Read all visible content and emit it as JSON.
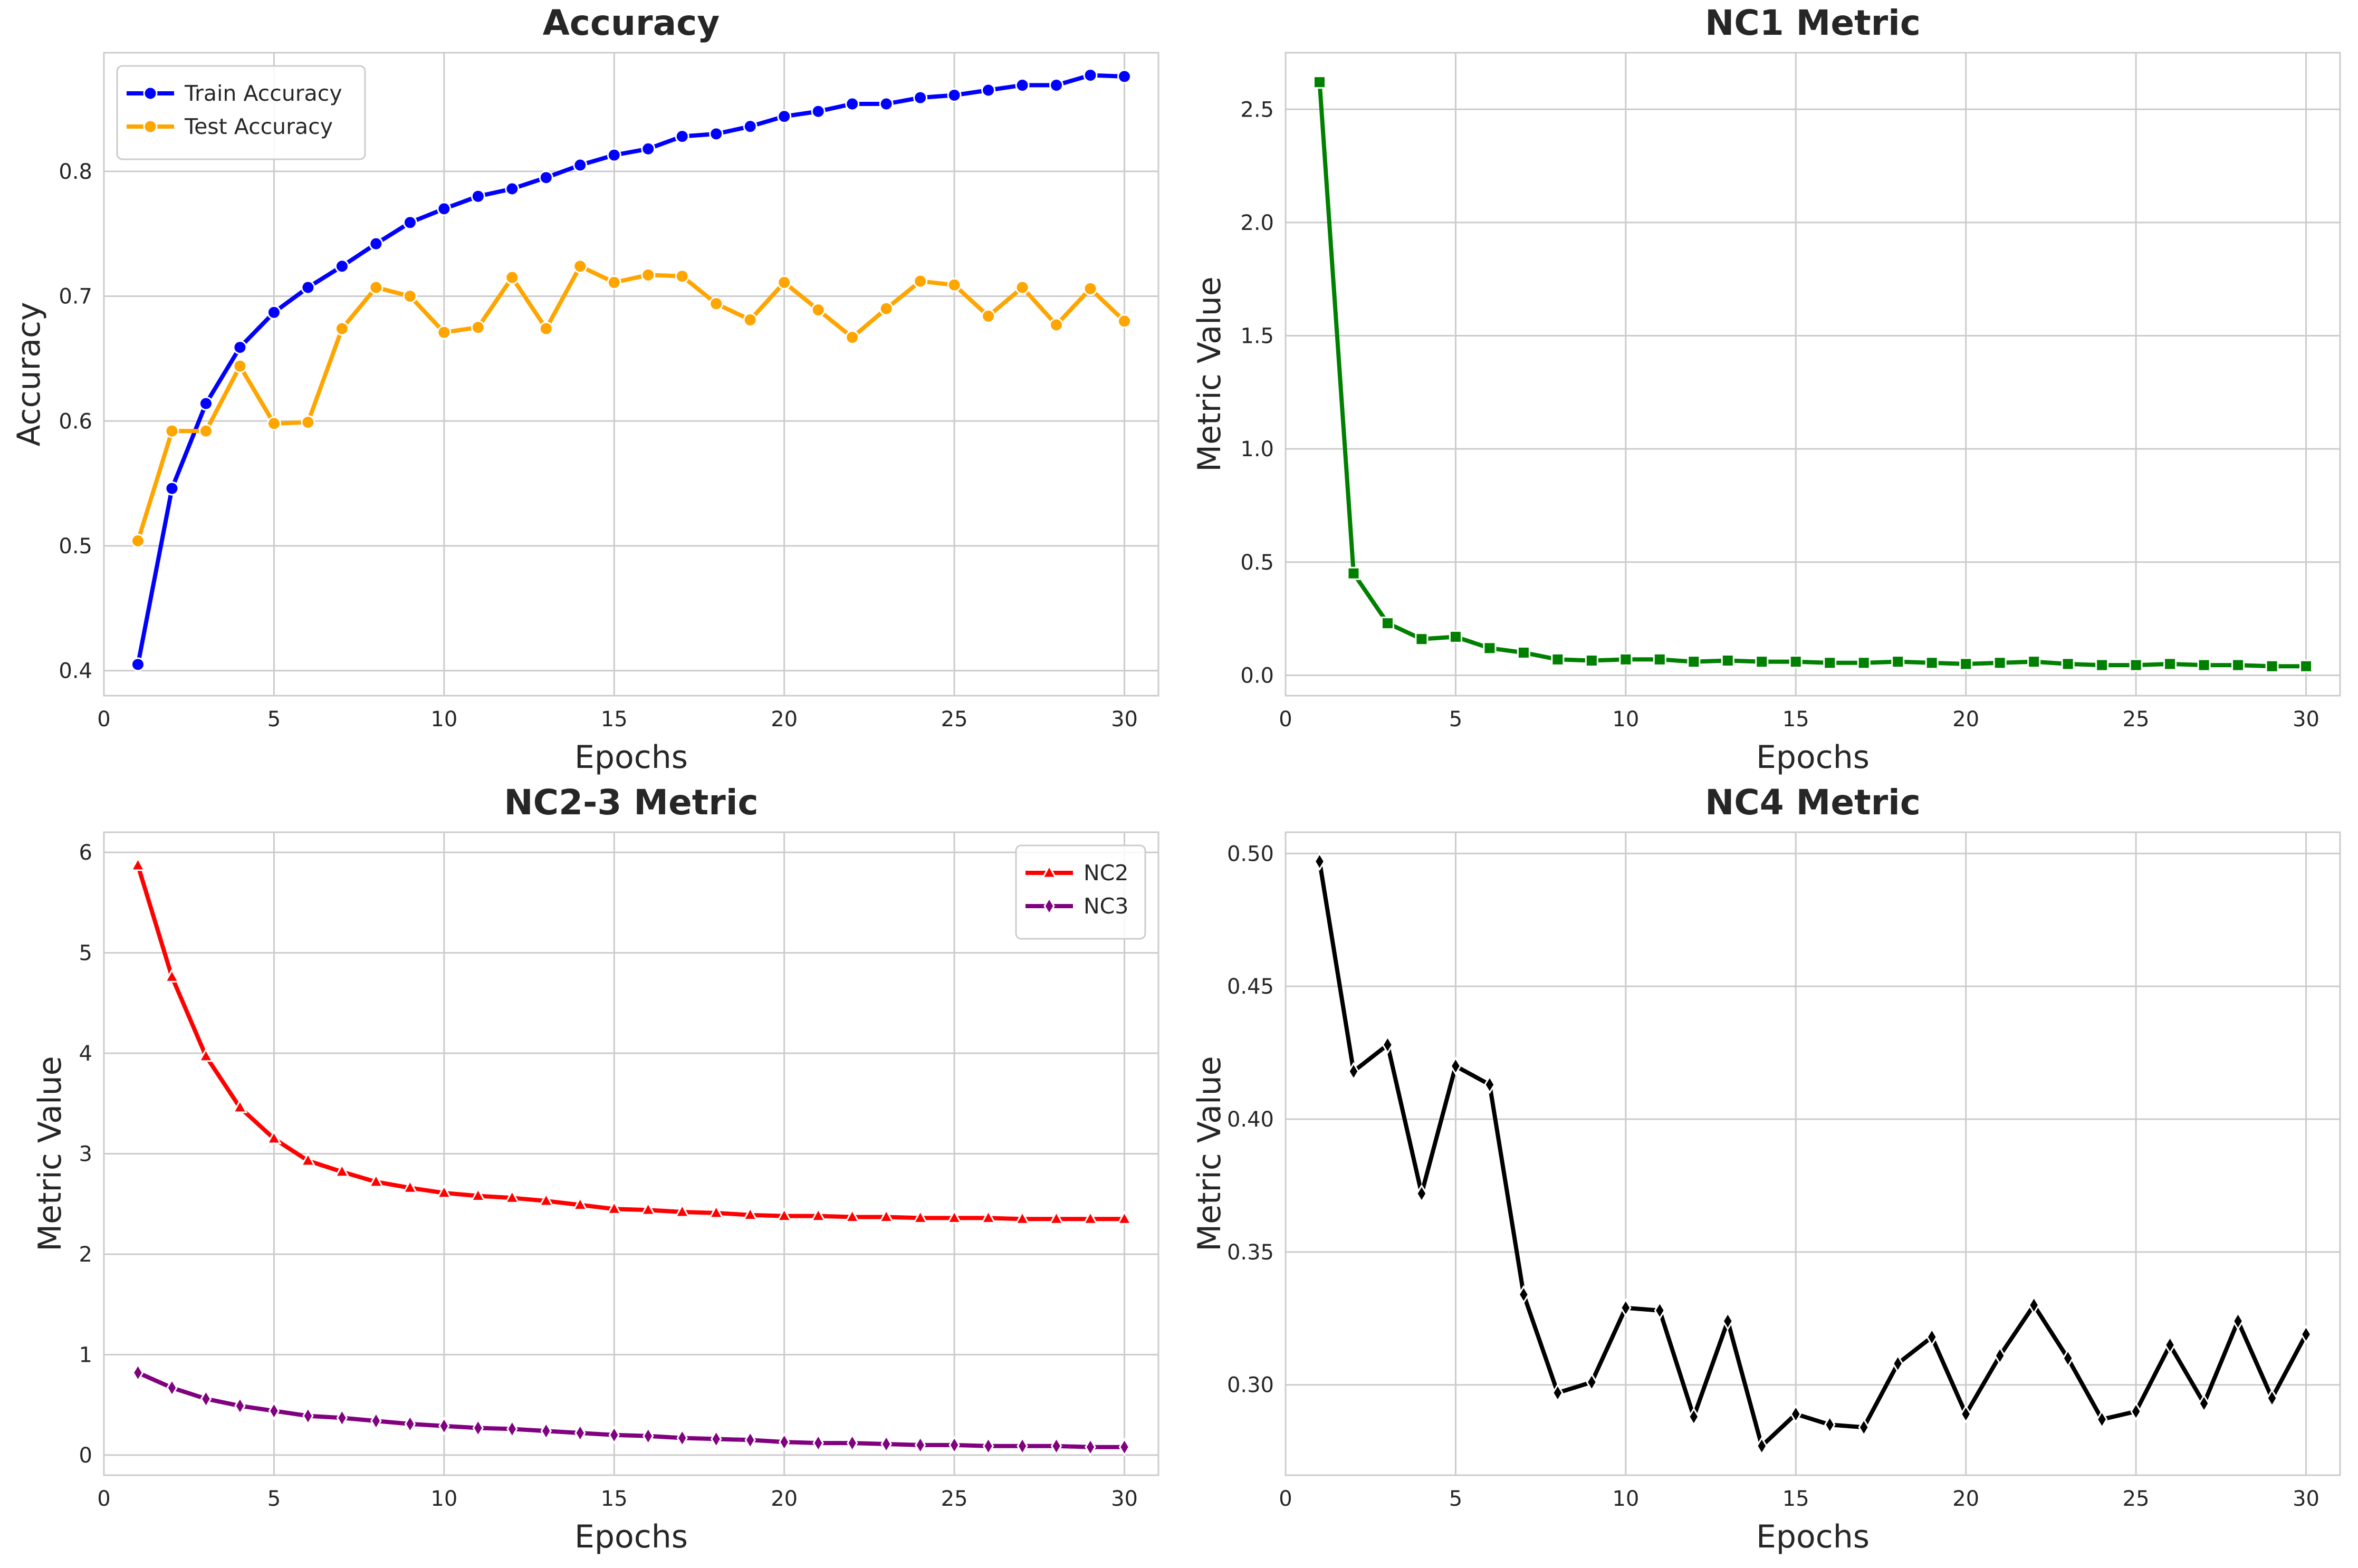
{
  "chart_data": [
    {
      "type": "line",
      "title": "Accuracy",
      "xlabel": "Epochs",
      "ylabel": "Accuracy",
      "xlim": [
        0,
        31
      ],
      "ylim": [
        0.38,
        0.895
      ],
      "xticks": [
        0,
        5,
        10,
        15,
        20,
        25,
        30
      ],
      "yticks": [
        0.4,
        0.5,
        0.6,
        0.7,
        0.8
      ],
      "ytick_labels": [
        "0.4",
        "0.5",
        "0.6",
        "0.7",
        "0.8"
      ],
      "grid": true,
      "legend": "upper-left",
      "x": [
        1,
        2,
        3,
        4,
        5,
        6,
        7,
        8,
        9,
        10,
        11,
        12,
        13,
        14,
        15,
        16,
        17,
        18,
        19,
        20,
        21,
        22,
        23,
        24,
        25,
        26,
        27,
        28,
        29,
        30
      ],
      "series": [
        {
          "name": "Train Accuracy",
          "color": "#0000ff",
          "marker": "circle",
          "values": [
            0.405,
            0.546,
            0.614,
            0.659,
            0.687,
            0.707,
            0.724,
            0.742,
            0.759,
            0.77,
            0.78,
            0.786,
            0.795,
            0.805,
            0.813,
            0.818,
            0.828,
            0.83,
            0.836,
            0.844,
            0.848,
            0.854,
            0.854,
            0.859,
            0.861,
            0.865,
            0.869,
            0.869,
            0.877,
            0.876
          ]
        },
        {
          "name": "Test Accuracy",
          "color": "#ffa500",
          "marker": "circle",
          "values": [
            0.504,
            0.592,
            0.592,
            0.644,
            0.598,
            0.599,
            0.674,
            0.707,
            0.7,
            0.671,
            0.675,
            0.715,
            0.674,
            0.724,
            0.711,
            0.717,
            0.716,
            0.694,
            0.681,
            0.711,
            0.689,
            0.667,
            0.69,
            0.712,
            0.709,
            0.684,
            0.707,
            0.677,
            0.706,
            0.68
          ]
        }
      ]
    },
    {
      "type": "line",
      "title": "NC1 Metric",
      "xlabel": "Epochs",
      "ylabel": "Metric Value",
      "xlim": [
        0,
        31
      ],
      "ylim": [
        -0.09,
        2.75
      ],
      "xticks": [
        0,
        5,
        10,
        15,
        20,
        25,
        30
      ],
      "yticks": [
        0.0,
        0.5,
        1.0,
        1.5,
        2.0,
        2.5
      ],
      "ytick_labels": [
        "0.0",
        "0.5",
        "1.0",
        "1.5",
        "2.0",
        "2.5"
      ],
      "grid": true,
      "x": [
        1,
        2,
        3,
        4,
        5,
        6,
        7,
        8,
        9,
        10,
        11,
        12,
        13,
        14,
        15,
        16,
        17,
        18,
        19,
        20,
        21,
        22,
        23,
        24,
        25,
        26,
        27,
        28,
        29,
        30
      ],
      "series": [
        {
          "name": "",
          "color": "#008000",
          "marker": "square",
          "values": [
            2.62,
            0.45,
            0.23,
            0.16,
            0.17,
            0.12,
            0.1,
            0.07,
            0.065,
            0.07,
            0.07,
            0.06,
            0.065,
            0.06,
            0.06,
            0.055,
            0.055,
            0.06,
            0.055,
            0.05,
            0.055,
            0.06,
            0.05,
            0.045,
            0.045,
            0.05,
            0.045,
            0.045,
            0.04,
            0.04
          ]
        }
      ]
    },
    {
      "type": "line",
      "title": "NC2-3 Metric",
      "xlabel": "Epochs",
      "ylabel": "Metric Value",
      "xlim": [
        0,
        31
      ],
      "ylim": [
        -0.2,
        6.2
      ],
      "xticks": [
        0,
        5,
        10,
        15,
        20,
        25,
        30
      ],
      "yticks": [
        0,
        1,
        2,
        3,
        4,
        5,
        6
      ],
      "ytick_labels": [
        "0",
        "1",
        "2",
        "3",
        "4",
        "5",
        "6"
      ],
      "grid": true,
      "legend": "upper-right",
      "x": [
        1,
        2,
        3,
        4,
        5,
        6,
        7,
        8,
        9,
        10,
        11,
        12,
        13,
        14,
        15,
        16,
        17,
        18,
        19,
        20,
        21,
        22,
        23,
        24,
        25,
        26,
        27,
        28,
        29,
        30
      ],
      "series": [
        {
          "name": "NC2",
          "color": "#ff0000",
          "marker": "triangle",
          "values": [
            5.87,
            4.76,
            3.97,
            3.46,
            3.15,
            2.93,
            2.82,
            2.72,
            2.66,
            2.61,
            2.58,
            2.56,
            2.53,
            2.49,
            2.45,
            2.44,
            2.42,
            2.41,
            2.39,
            2.38,
            2.38,
            2.37,
            2.37,
            2.36,
            2.36,
            2.36,
            2.35,
            2.35,
            2.35,
            2.35
          ]
        },
        {
          "name": "NC3",
          "color": "#800080",
          "marker": "diamond",
          "values": [
            0.82,
            0.67,
            0.56,
            0.49,
            0.44,
            0.39,
            0.37,
            0.34,
            0.31,
            0.29,
            0.27,
            0.26,
            0.24,
            0.22,
            0.2,
            0.19,
            0.17,
            0.16,
            0.15,
            0.13,
            0.12,
            0.12,
            0.11,
            0.1,
            0.1,
            0.09,
            0.09,
            0.09,
            0.08,
            0.08
          ]
        }
      ]
    },
    {
      "type": "line",
      "title": "NC4 Metric",
      "xlabel": "Epochs",
      "ylabel": "Metric Value",
      "xlim": [
        0,
        31
      ],
      "ylim": [
        0.266,
        0.508
      ],
      "xticks": [
        0,
        5,
        10,
        15,
        20,
        25,
        30
      ],
      "yticks": [
        0.3,
        0.35,
        0.4,
        0.45,
        0.5
      ],
      "ytick_labels": [
        "0.30",
        "0.35",
        "0.40",
        "0.45",
        "0.50"
      ],
      "grid": true,
      "x": [
        1,
        2,
        3,
        4,
        5,
        6,
        7,
        8,
        9,
        10,
        11,
        12,
        13,
        14,
        15,
        16,
        17,
        18,
        19,
        20,
        21,
        22,
        23,
        24,
        25,
        26,
        27,
        28,
        29,
        30
      ],
      "series": [
        {
          "name": "",
          "color": "#000000",
          "marker": "diamond",
          "values": [
            0.497,
            0.418,
            0.428,
            0.372,
            0.42,
            0.413,
            0.334,
            0.297,
            0.301,
            0.329,
            0.328,
            0.288,
            0.324,
            0.277,
            0.289,
            0.285,
            0.284,
            0.308,
            0.318,
            0.289,
            0.311,
            0.33,
            0.31,
            0.287,
            0.29,
            0.315,
            0.293,
            0.324,
            0.295,
            0.319
          ]
        }
      ]
    }
  ]
}
